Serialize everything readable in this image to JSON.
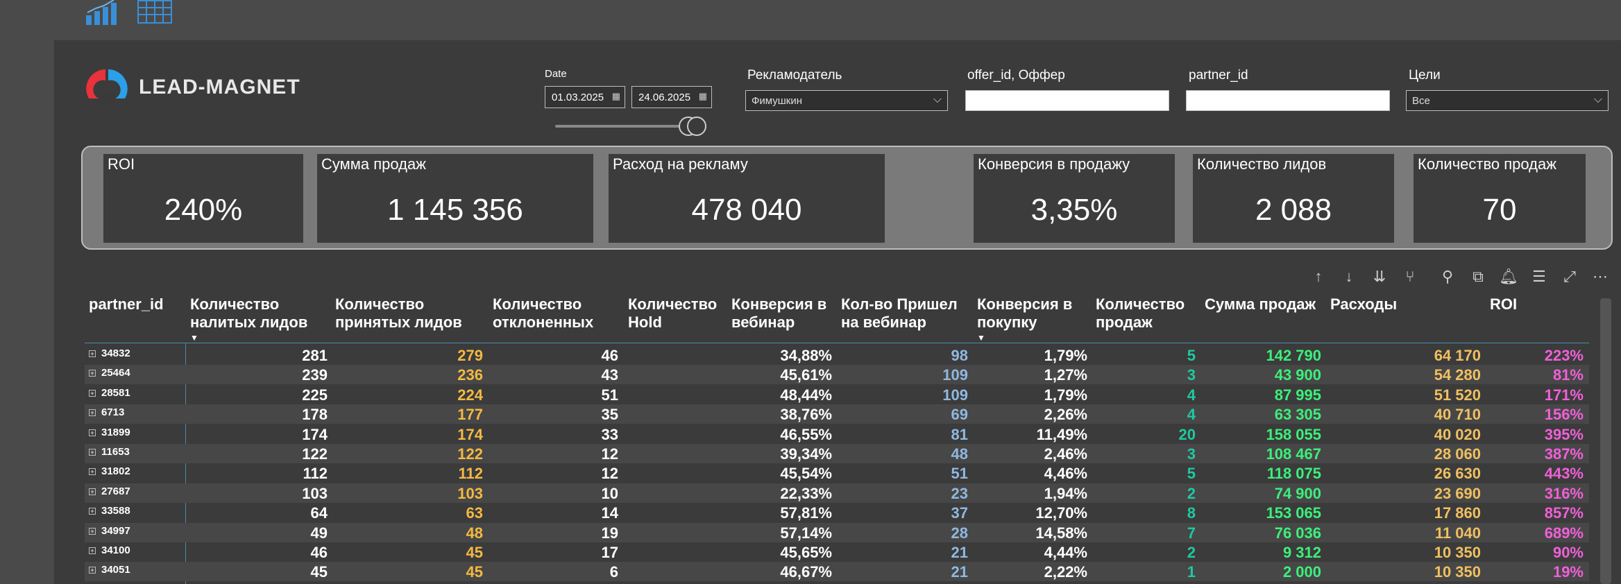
{
  "top_bar": {
    "icons": [
      "bar-chart-icon",
      "table-grid-icon"
    ]
  },
  "logo": {
    "text": "LEAD-MAGNET"
  },
  "filters": {
    "date": {
      "label": "Date",
      "from": "01.03.2025",
      "to": "24.06.2025"
    },
    "advertiser": {
      "label": "Рекламодатель",
      "value": "Фимушкин"
    },
    "offer": {
      "label": "offer_id, Оффер",
      "value": ""
    },
    "partner": {
      "label": "partner_id",
      "value": ""
    },
    "goals": {
      "label": "Цели",
      "value": "Все"
    }
  },
  "kpis": [
    {
      "title": "ROI",
      "value": "240%"
    },
    {
      "title": "Сумма продаж",
      "value": "1 145 356"
    },
    {
      "title": "Расход на рекламу",
      "value": "478 040"
    },
    {
      "title": "Конверсия в продажу",
      "value": "3,35%"
    },
    {
      "title": "Количество лидов",
      "value": "2 088"
    },
    {
      "title": "Количество продаж",
      "value": "70"
    }
  ],
  "toolbar": {
    "icons": [
      "sort-up-icon",
      "sort-down-icon",
      "expand-all-icon",
      "drill-down-icon",
      "pin-icon",
      "copy-icon",
      "alert-icon",
      "filter-icon",
      "focus-mode-icon",
      "more-options-icon"
    ]
  },
  "table": {
    "headers": [
      {
        "l1": "partner_id",
        "l2": ""
      },
      {
        "l1": "Количество",
        "l2": "налитых лидов"
      },
      {
        "l1": "Количество",
        "l2": "принятых лидов"
      },
      {
        "l1": "Количество",
        "l2": "отклоненных"
      },
      {
        "l1": "Количество",
        "l2": "Hold"
      },
      {
        "l1": "Конверсия в",
        "l2": "вебинар"
      },
      {
        "l1": "Кол-во Пришел",
        "l2": "на вебинар"
      },
      {
        "l1": "Конверсия в",
        "l2": "покупку"
      },
      {
        "l1": "Количество",
        "l2": "продаж"
      },
      {
        "l1": "Сумма продаж",
        "l2": ""
      },
      {
        "l1": "Расходы",
        "l2": ""
      },
      {
        "l1": "ROI",
        "l2": ""
      }
    ],
    "rows": [
      {
        "id": "34832",
        "leads": "281",
        "accepted": "279",
        "rejected": "46",
        "hold": "",
        "conv_web": "34,88%",
        "came_web": "98",
        "conv_buy": "1,79%",
        "sales": "5",
        "sum": "142 790",
        "cost": "64 170",
        "roi": "223%"
      },
      {
        "id": "25464",
        "leads": "239",
        "accepted": "236",
        "rejected": "43",
        "hold": "",
        "conv_web": "45,61%",
        "came_web": "109",
        "conv_buy": "1,27%",
        "sales": "3",
        "sum": "43 900",
        "cost": "54 280",
        "roi": "81%"
      },
      {
        "id": "28581",
        "leads": "225",
        "accepted": "224",
        "rejected": "51",
        "hold": "",
        "conv_web": "48,44%",
        "came_web": "109",
        "conv_buy": "1,79%",
        "sales": "4",
        "sum": "87 995",
        "cost": "51 520",
        "roi": "171%"
      },
      {
        "id": "6713",
        "leads": "178",
        "accepted": "177",
        "rejected": "35",
        "hold": "",
        "conv_web": "38,76%",
        "came_web": "69",
        "conv_buy": "2,26%",
        "sales": "4",
        "sum": "63 305",
        "cost": "40 710",
        "roi": "156%"
      },
      {
        "id": "31899",
        "leads": "174",
        "accepted": "174",
        "rejected": "33",
        "hold": "",
        "conv_web": "46,55%",
        "came_web": "81",
        "conv_buy": "11,49%",
        "sales": "20",
        "sum": "158 055",
        "cost": "40 020",
        "roi": "395%"
      },
      {
        "id": "11653",
        "leads": "122",
        "accepted": "122",
        "rejected": "12",
        "hold": "",
        "conv_web": "39,34%",
        "came_web": "48",
        "conv_buy": "2,46%",
        "sales": "3",
        "sum": "108 467",
        "cost": "28 060",
        "roi": "387%"
      },
      {
        "id": "31802",
        "leads": "112",
        "accepted": "112",
        "rejected": "12",
        "hold": "",
        "conv_web": "45,54%",
        "came_web": "51",
        "conv_buy": "4,46%",
        "sales": "5",
        "sum": "118 075",
        "cost": "26 630",
        "roi": "443%"
      },
      {
        "id": "27687",
        "leads": "103",
        "accepted": "103",
        "rejected": "10",
        "hold": "",
        "conv_web": "22,33%",
        "came_web": "23",
        "conv_buy": "1,94%",
        "sales": "2",
        "sum": "74 900",
        "cost": "23 690",
        "roi": "316%"
      },
      {
        "id": "33588",
        "leads": "64",
        "accepted": "63",
        "rejected": "14",
        "hold": "",
        "conv_web": "57,81%",
        "came_web": "37",
        "conv_buy": "12,70%",
        "sales": "8",
        "sum": "153 065",
        "cost": "17 860",
        "roi": "857%"
      },
      {
        "id": "34997",
        "leads": "49",
        "accepted": "48",
        "rejected": "19",
        "hold": "",
        "conv_web": "57,14%",
        "came_web": "28",
        "conv_buy": "14,58%",
        "sales": "7",
        "sum": "76 036",
        "cost": "11 040",
        "roi": "689%"
      },
      {
        "id": "34100",
        "leads": "46",
        "accepted": "45",
        "rejected": "17",
        "hold": "",
        "conv_web": "45,65%",
        "came_web": "21",
        "conv_buy": "4,44%",
        "sales": "2",
        "sum": "9 312",
        "cost": "10 350",
        "roi": "90%"
      },
      {
        "id": "34051",
        "leads": "45",
        "accepted": "45",
        "rejected": "6",
        "hold": "",
        "conv_web": "46,67%",
        "came_web": "21",
        "conv_buy": "2,22%",
        "sales": "1",
        "sum": "2 000",
        "cost": "10 350",
        "roi": "19%"
      }
    ]
  }
}
